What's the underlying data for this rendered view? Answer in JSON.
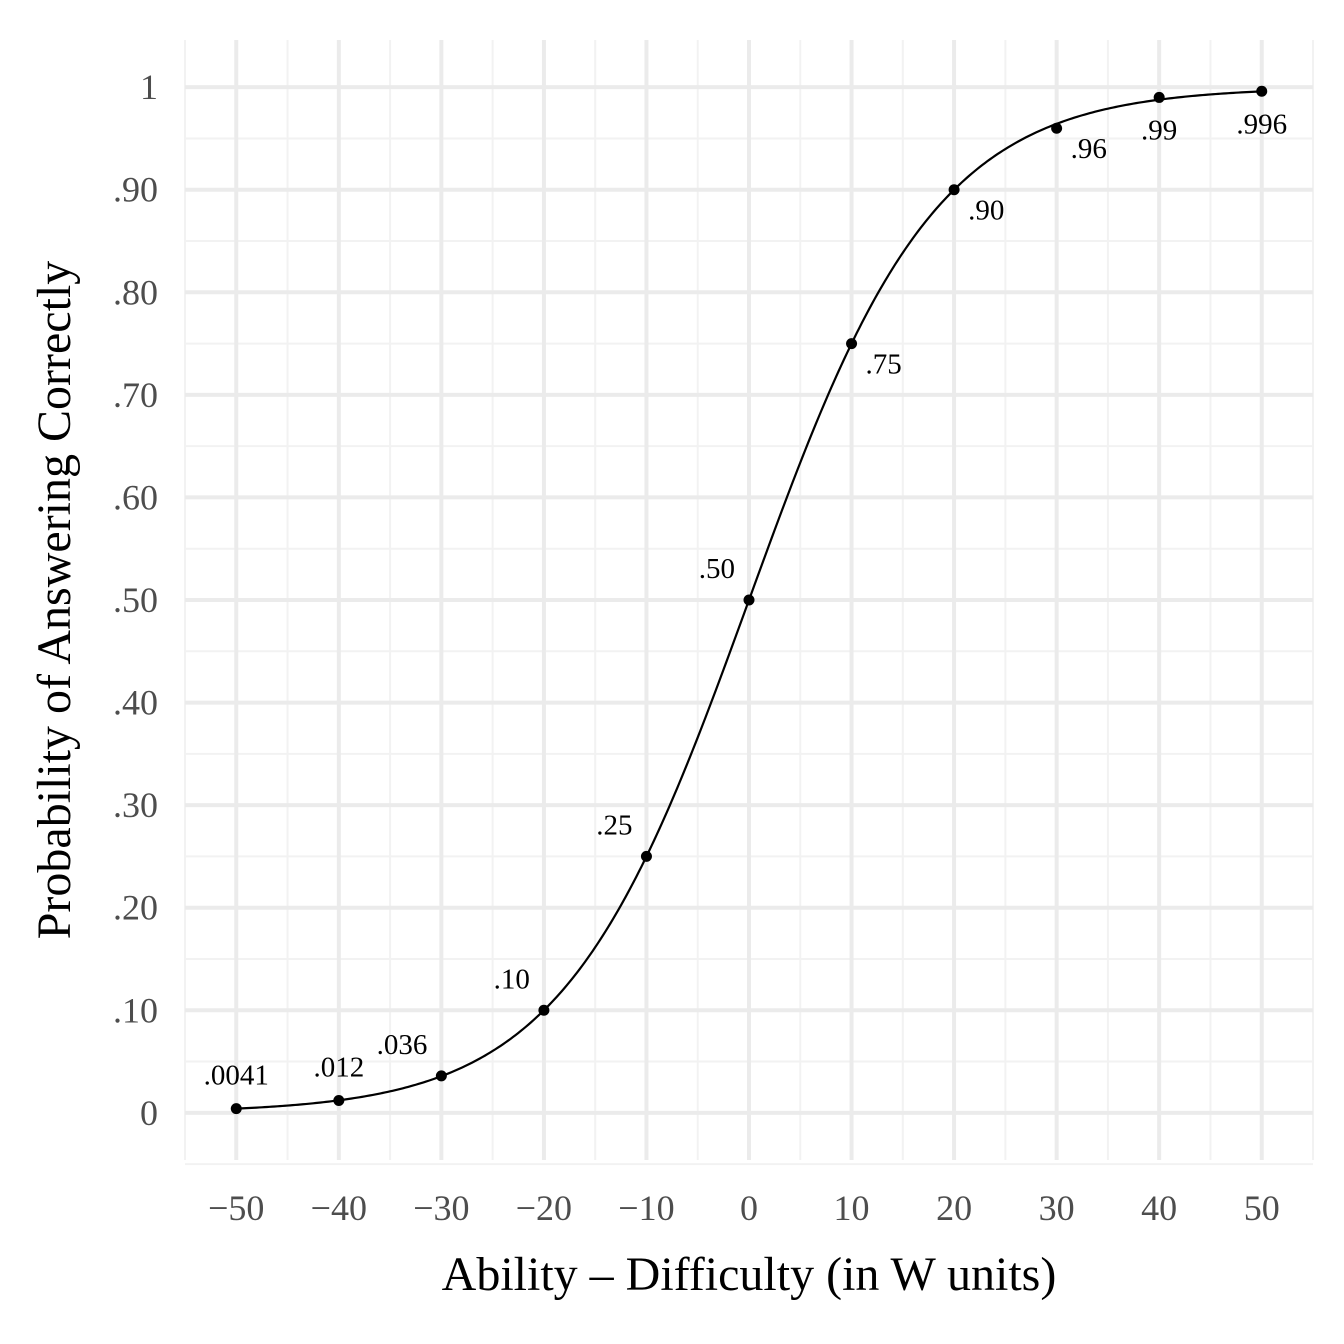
{
  "chart_data": {
    "type": "line",
    "title": "",
    "xlabel": "Ability – Difficulty (in W units)",
    "ylabel": "Probability of Answering Correctly",
    "xlim": [
      -55,
      55
    ],
    "ylim": [
      -0.046,
      1.046
    ],
    "grid": true,
    "legend": "none",
    "x_ticks": [
      {
        "value": -50,
        "label": "−50"
      },
      {
        "value": -40,
        "label": "−40"
      },
      {
        "value": -30,
        "label": "−30"
      },
      {
        "value": -20,
        "label": "−20"
      },
      {
        "value": -10,
        "label": "−10"
      },
      {
        "value": 0,
        "label": "0"
      },
      {
        "value": 10,
        "label": "10"
      },
      {
        "value": 20,
        "label": "20"
      },
      {
        "value": 30,
        "label": "30"
      },
      {
        "value": 40,
        "label": "40"
      },
      {
        "value": 50,
        "label": "50"
      }
    ],
    "y_ticks": [
      {
        "value": 0,
        "label": "0"
      },
      {
        "value": 0.1,
        "label": ".10"
      },
      {
        "value": 0.2,
        "label": ".20"
      },
      {
        "value": 0.3,
        "label": ".30"
      },
      {
        "value": 0.4,
        "label": ".40"
      },
      {
        "value": 0.5,
        "label": ".50"
      },
      {
        "value": 0.6,
        "label": ".60"
      },
      {
        "value": 0.7,
        "label": ".70"
      },
      {
        "value": 0.8,
        "label": ".80"
      },
      {
        "value": 0.9,
        "label": ".90"
      },
      {
        "value": 1,
        "label": "1"
      }
    ],
    "series": [
      {
        "curve": "logistic",
        "points": [
          {
            "x": -50,
            "y": 0.0041,
            "label": ".0041",
            "label_side": "above"
          },
          {
            "x": -40,
            "y": 0.012,
            "label": ".012",
            "label_side": "above"
          },
          {
            "x": -30,
            "y": 0.036,
            "label": ".036",
            "label_side": "above-left"
          },
          {
            "x": -20,
            "y": 0.1,
            "label": ".10",
            "label_side": "above-left"
          },
          {
            "x": -10,
            "y": 0.25,
            "label": ".25",
            "label_side": "above-left"
          },
          {
            "x": 0,
            "y": 0.5,
            "label": ".50",
            "label_side": "above-left"
          },
          {
            "x": 10,
            "y": 0.75,
            "label": ".75",
            "label_side": "below-right"
          },
          {
            "x": 20,
            "y": 0.9,
            "label": ".90",
            "label_side": "below-right"
          },
          {
            "x": 30,
            "y": 0.96,
            "label": ".96",
            "label_side": "below-right"
          },
          {
            "x": 40,
            "y": 0.99,
            "label": ".99",
            "label_side": "below"
          },
          {
            "x": 50,
            "y": 0.996,
            "label": ".996",
            "label_side": "below"
          }
        ]
      }
    ],
    "colors": {
      "line": "#000000",
      "point": "#000000",
      "grid_major": "#ebebeb",
      "grid_minor": "#f2f2f2",
      "tick_text": "#4d4d4d"
    }
  }
}
